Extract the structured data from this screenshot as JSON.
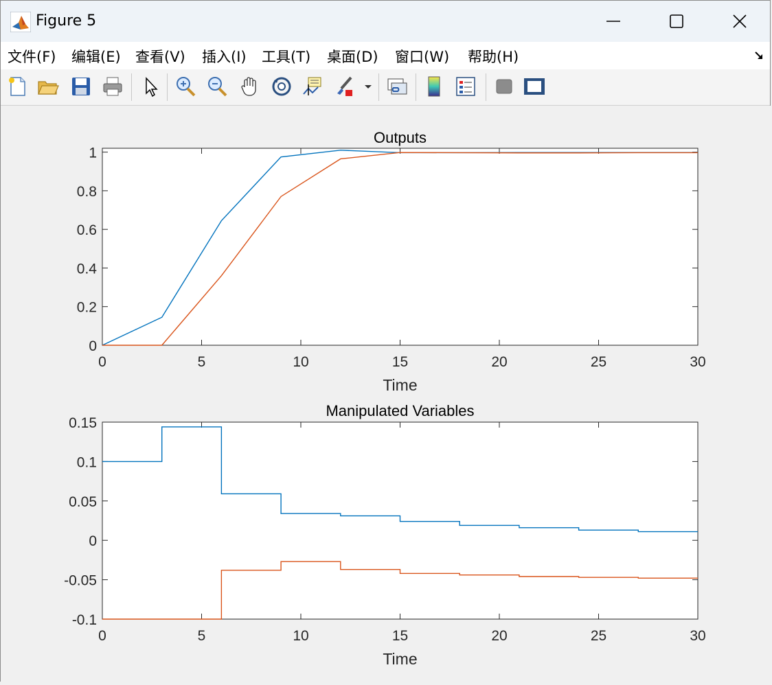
{
  "window": {
    "title": "Figure 5",
    "minimize_icon": "minimize-icon",
    "maximize_icon": "maximize-icon",
    "close_icon": "close-icon"
  },
  "menubar": {
    "items": [
      "文件(F)",
      "编辑(E)",
      "查看(V)",
      "插入(I)",
      "工具(T)",
      "桌面(D)",
      "窗口(W)",
      "帮助(H)"
    ]
  },
  "toolbar": {
    "icons": [
      "new-figure-icon",
      "open-file-icon",
      "save-icon",
      "print-icon",
      "select-pointer-icon",
      "zoom-in-icon",
      "zoom-out-icon",
      "pan-hand-icon",
      "rotate-3d-icon",
      "data-cursor-icon",
      "brush-icon",
      "link-plot-icon",
      "colorbar-icon",
      "legend-icon",
      "hide-plot-tools-icon",
      "show-plot-tools-icon"
    ]
  },
  "colors": {
    "series1": "#0072BD",
    "series2": "#D95319"
  },
  "chart_data": [
    {
      "type": "line",
      "title": "Outputs",
      "xlabel": "Time",
      "ylabel": "",
      "xlim": [
        0,
        30
      ],
      "ylim": [
        0,
        1.02
      ],
      "xticks": [
        "0",
        "5",
        "10",
        "15",
        "20",
        "25",
        "30"
      ],
      "yticks": [
        "0",
        "0.2",
        "0.4",
        "0.6",
        "0.8",
        "1"
      ],
      "grid": false,
      "series": [
        {
          "x": [
            0,
            3,
            6,
            9,
            12,
            15,
            18,
            21,
            24,
            27,
            30
          ],
          "values": [
            0,
            0.145,
            0.645,
            0.975,
            1.01,
            0.997,
            0.997,
            0.998,
            0.998,
            0.998,
            0.998
          ]
        },
        {
          "x": [
            0,
            3,
            6,
            9,
            12,
            15,
            18,
            21,
            24,
            27,
            30
          ],
          "values": [
            0,
            0,
            0.36,
            0.77,
            0.965,
            0.998,
            0.997,
            0.996,
            0.996,
            0.997,
            0.997
          ]
        }
      ]
    },
    {
      "type": "line",
      "title": "Manipulated Variables",
      "xlabel": "Time",
      "ylabel": "",
      "xlim": [
        0,
        30
      ],
      "ylim": [
        -0.1,
        0.15
      ],
      "xticks": [
        "0",
        "5",
        "10",
        "15",
        "20",
        "25",
        "30"
      ],
      "yticks": [
        "-0.1",
        "-0.05",
        "0",
        "0.05",
        "0.1",
        "0.15"
      ],
      "grid": false,
      "step": true,
      "series": [
        {
          "x": [
            0,
            3,
            6,
            9,
            12,
            15,
            18,
            21,
            24,
            27,
            30
          ],
          "values": [
            0.1,
            0.144,
            0.059,
            0.034,
            0.031,
            0.024,
            0.019,
            0.016,
            0.013,
            0.011,
            0.011
          ]
        },
        {
          "x": [
            0,
            3,
            6,
            9,
            12,
            15,
            18,
            21,
            24,
            27,
            30
          ],
          "values": [
            -0.1,
            -0.1,
            -0.038,
            -0.027,
            -0.037,
            -0.042,
            -0.044,
            -0.046,
            -0.047,
            -0.048,
            -0.048
          ]
        }
      ]
    }
  ]
}
